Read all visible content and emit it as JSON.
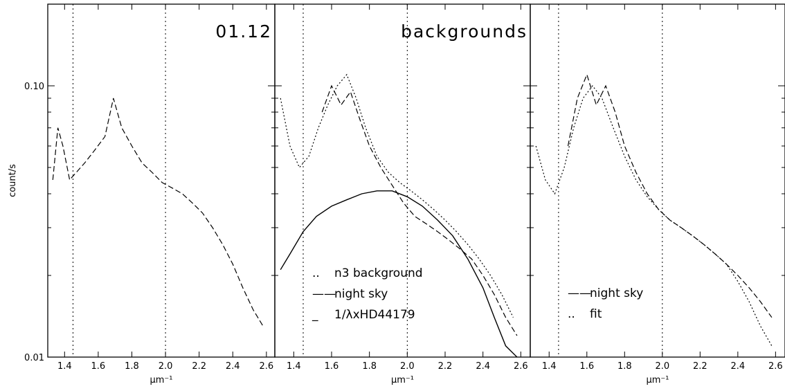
{
  "chart_data": [
    {
      "type": "line",
      "panel": "left",
      "title": "01.12",
      "xlabel": "µm⁻¹",
      "ylabel": "count/s",
      "xlim": [
        1.3,
        2.65
      ],
      "ylim": [
        0.01,
        0.2
      ],
      "yscale": "log",
      "x_ticks": [
        "1.4",
        "1.6",
        "1.8",
        "2.0",
        "2.2",
        "2.4",
        "2.6"
      ],
      "y_ticks": [
        "0.10",
        "0.01"
      ],
      "vertical_lines": [
        1.45,
        2.0
      ],
      "series": [
        {
          "style": "dashed",
          "x": [
            1.33,
            1.36,
            1.39,
            1.43,
            1.47,
            1.52,
            1.58,
            1.64,
            1.69,
            1.74,
            1.8,
            1.86,
            1.92,
            1.98,
            2.04,
            2.1,
            2.16,
            2.22,
            2.28,
            2.34,
            2.4,
            2.46,
            2.52,
            2.58
          ],
          "y": [
            0.045,
            0.07,
            0.06,
            0.045,
            0.048,
            0.052,
            0.058,
            0.065,
            0.09,
            0.07,
            0.06,
            0.052,
            0.048,
            0.044,
            0.042,
            0.04,
            0.037,
            0.034,
            0.03,
            0.026,
            0.022,
            0.018,
            0.015,
            0.013
          ]
        }
      ]
    },
    {
      "type": "line",
      "panel": "middle",
      "title": "backgrounds",
      "xlabel": "µm⁻¹",
      "xlim": [
        1.3,
        2.65
      ],
      "ylim": [
        0.01,
        0.2
      ],
      "yscale": "log",
      "x_ticks": [
        "1.4",
        "1.6",
        "1.8",
        "2.0",
        "2.2",
        "2.4",
        "2.6"
      ],
      "vertical_lines": [
        1.45,
        2.0
      ],
      "legend": [
        {
          "symbol": "..",
          "label": "n3 background"
        },
        {
          "symbol": "——",
          "label": "night sky"
        },
        {
          "symbol": "_",
          "label": "1/λxHD44179"
        }
      ],
      "series": [
        {
          "name": "n3 background",
          "style": "dotted",
          "x": [
            1.33,
            1.38,
            1.43,
            1.48,
            1.53,
            1.58,
            1.63,
            1.68,
            1.73,
            1.78,
            1.84,
            1.9,
            1.96,
            2.02,
            2.08,
            2.14,
            2.2,
            2.26,
            2.32,
            2.38,
            2.44,
            2.5,
            2.56
          ],
          "y": [
            0.09,
            0.06,
            0.05,
            0.055,
            0.07,
            0.085,
            0.1,
            0.11,
            0.09,
            0.07,
            0.055,
            0.048,
            0.044,
            0.041,
            0.038,
            0.035,
            0.032,
            0.029,
            0.026,
            0.023,
            0.02,
            0.017,
            0.014
          ]
        },
        {
          "name": "night sky",
          "style": "dashed",
          "x": [
            1.55,
            1.6,
            1.65,
            1.7,
            1.75,
            1.8,
            1.86,
            1.92,
            1.98,
            2.04,
            2.1,
            2.16,
            2.22,
            2.28,
            2.34,
            2.4,
            2.46,
            2.52,
            2.58
          ],
          "y": [
            0.08,
            0.1,
            0.085,
            0.095,
            0.075,
            0.06,
            0.05,
            0.043,
            0.037,
            0.033,
            0.031,
            0.029,
            0.027,
            0.025,
            0.023,
            0.02,
            0.017,
            0.014,
            0.012
          ]
        },
        {
          "name": "1/λxHD44179",
          "style": "solid",
          "x": [
            1.33,
            1.38,
            1.45,
            1.52,
            1.6,
            1.68,
            1.76,
            1.84,
            1.92,
            2.0,
            2.08,
            2.16,
            2.24,
            2.32,
            2.4,
            2.46,
            2.52,
            2.58
          ],
          "y": [
            0.021,
            0.024,
            0.029,
            0.033,
            0.036,
            0.038,
            0.04,
            0.041,
            0.041,
            0.039,
            0.036,
            0.032,
            0.028,
            0.023,
            0.018,
            0.014,
            0.011,
            0.009
          ]
        }
      ]
    },
    {
      "type": "line",
      "panel": "right",
      "title": "",
      "xlabel": "µm⁻¹",
      "xlim": [
        1.3,
        2.65
      ],
      "ylim": [
        0.01,
        0.2
      ],
      "yscale": "log",
      "x_ticks": [
        "1.4",
        "1.6",
        "1.8",
        "2.0",
        "2.2",
        "2.4",
        "2.6"
      ],
      "vertical_lines": [
        1.45,
        2.0
      ],
      "legend": [
        {
          "symbol": "——",
          "label": "night sky"
        },
        {
          "symbol": "..",
          "label": "fit"
        }
      ],
      "series": [
        {
          "name": "night sky",
          "style": "dashed",
          "x": [
            1.5,
            1.55,
            1.6,
            1.65,
            1.7,
            1.75,
            1.8,
            1.86,
            1.92,
            1.98,
            2.04,
            2.1,
            2.16,
            2.22,
            2.28,
            2.34,
            2.4,
            2.46,
            2.52,
            2.58
          ],
          "y": [
            0.06,
            0.09,
            0.11,
            0.085,
            0.1,
            0.08,
            0.06,
            0.048,
            0.04,
            0.035,
            0.032,
            0.03,
            0.028,
            0.026,
            0.024,
            0.022,
            0.02,
            0.018,
            0.016,
            0.014
          ]
        },
        {
          "name": "fit",
          "style": "dotted",
          "x": [
            1.33,
            1.38,
            1.43,
            1.48,
            1.53,
            1.58,
            1.63,
            1.68,
            1.74,
            1.8,
            1.86,
            1.92,
            1.98,
            2.04,
            2.1,
            2.16,
            2.22,
            2.28,
            2.34,
            2.4,
            2.46,
            2.52,
            2.58
          ],
          "y": [
            0.06,
            0.045,
            0.04,
            0.05,
            0.07,
            0.09,
            0.1,
            0.09,
            0.07,
            0.055,
            0.045,
            0.039,
            0.035,
            0.032,
            0.03,
            0.028,
            0.026,
            0.024,
            0.022,
            0.019,
            0.016,
            0.013,
            0.011
          ]
        }
      ]
    }
  ]
}
